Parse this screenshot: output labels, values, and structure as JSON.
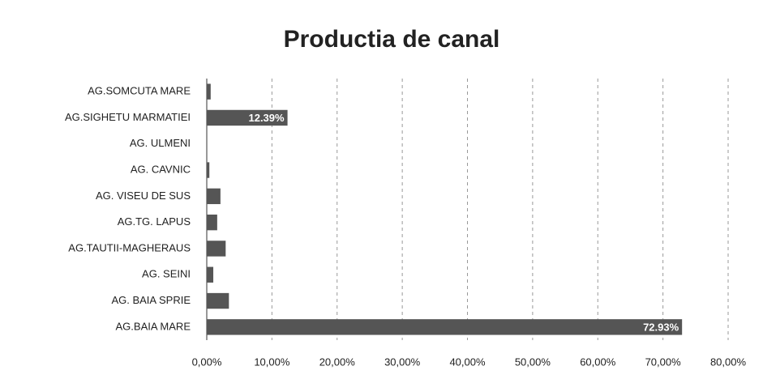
{
  "chart_data": {
    "type": "barh",
    "title": "Productia de canal",
    "categories": [
      "AG.SOMCUTA MARE",
      "AG.SIGHETU MARMATIEI",
      "AG. ULMENI",
      "AG. CAVNIC",
      "AG. VISEU DE SUS",
      "AG.TG. LAPUS",
      "AG.TAUTII-MAGHERAUS",
      "AG. SEINI",
      "AG. BAIA SPRIE",
      "AG.BAIA MARE"
    ],
    "values": [
      0.6,
      12.39,
      0,
      0.4,
      2.1,
      1.6,
      2.9,
      1.0,
      3.4,
      72.93
    ],
    "value_labels": [
      null,
      "12.39%",
      null,
      null,
      null,
      null,
      null,
      null,
      null,
      "72.93%"
    ],
    "color": "#555555",
    "xlim": [
      0,
      80
    ],
    "xticks": [
      {
        "value": 0,
        "label": "0,00%"
      },
      {
        "value": 10,
        "label": "10,00%"
      },
      {
        "value": 20,
        "label": "20,00%"
      },
      {
        "value": 30,
        "label": "30,00%"
      },
      {
        "value": 40,
        "label": "40,00%"
      },
      {
        "value": 50,
        "label": "50,00%"
      },
      {
        "value": 60,
        "label": "60,00%"
      },
      {
        "value": 70,
        "label": "70,00%"
      },
      {
        "value": 80,
        "label": "80,00%"
      }
    ],
    "grid": true
  }
}
